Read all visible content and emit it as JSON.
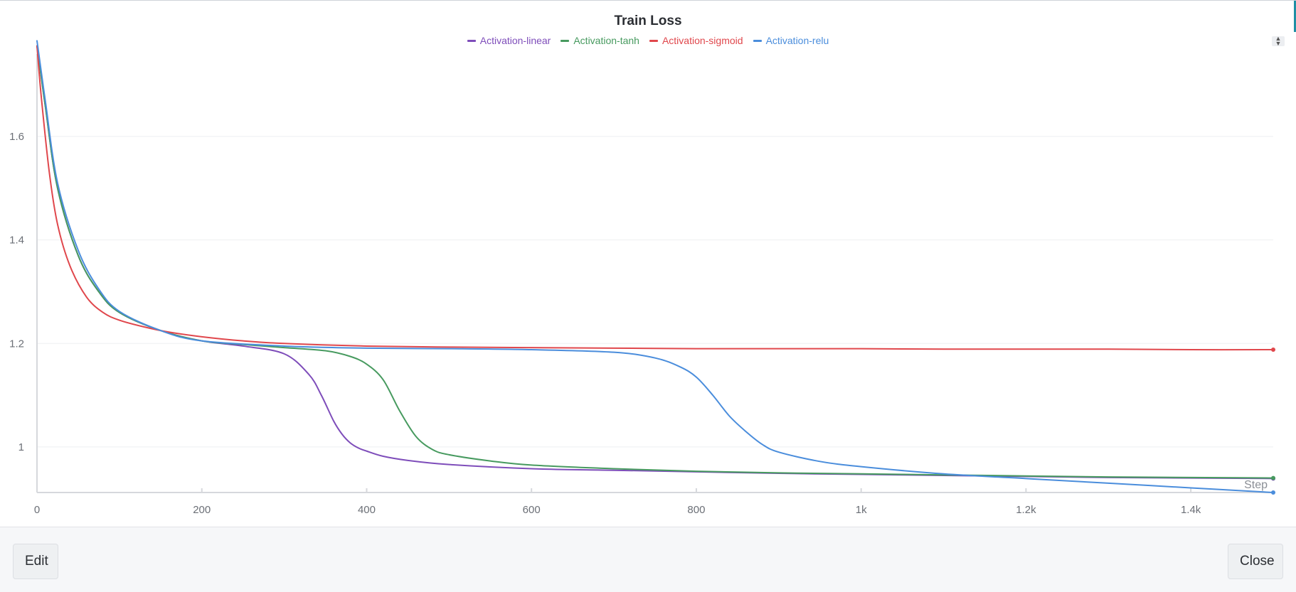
{
  "panel": {
    "edit_label": "Edit",
    "close_label": "Close"
  },
  "chart_data": {
    "type": "line",
    "title": "Train Loss",
    "xlabel": "Step",
    "ylabel": "",
    "xlim": [
      0,
      1500
    ],
    "ylim": [
      0.912,
      1.78
    ],
    "x_ticks": [
      0,
      200,
      400,
      600,
      800,
      1000,
      1200,
      1400
    ],
    "x_tick_labels": [
      "0",
      "200",
      "400",
      "600",
      "800",
      "1k",
      "1.2k",
      "1.4k"
    ],
    "y_ticks": [
      1.0,
      1.2,
      1.4,
      1.6
    ],
    "y_tick_labels": [
      "1",
      "1.2",
      "1.4",
      "1.6"
    ],
    "grid": true,
    "legend_position": "top-center",
    "series": [
      {
        "name": "Activation-linear",
        "color": "#7e4dba",
        "x": [
          0,
          10,
          25,
          50,
          75,
          100,
          150,
          200,
          250,
          300,
          330,
          345,
          360,
          370,
          380,
          390,
          400,
          420,
          450,
          500,
          600,
          700,
          800,
          900,
          1000,
          1100,
          1200,
          1300,
          1400,
          1500
        ],
        "y": [
          1.775,
          1.66,
          1.5,
          1.37,
          1.3,
          1.26,
          1.225,
          1.205,
          1.195,
          1.18,
          1.14,
          1.1,
          1.05,
          1.025,
          1.008,
          0.998,
          0.992,
          0.982,
          0.974,
          0.966,
          0.958,
          0.955,
          0.952,
          0.949,
          0.947,
          0.945,
          0.943,
          0.941,
          0.94,
          0.939
        ]
      },
      {
        "name": "Activation-tanh",
        "color": "#479a5f",
        "x": [
          0,
          10,
          25,
          50,
          75,
          100,
          150,
          200,
          250,
          300,
          350,
          380,
          400,
          420,
          440,
          460,
          480,
          500,
          550,
          600,
          700,
          800,
          900,
          1000,
          1100,
          1200,
          1300,
          1400,
          1500
        ],
        "y": [
          1.775,
          1.66,
          1.5,
          1.37,
          1.3,
          1.26,
          1.225,
          1.205,
          1.198,
          1.192,
          1.186,
          1.175,
          1.16,
          1.13,
          1.07,
          1.02,
          0.995,
          0.985,
          0.973,
          0.965,
          0.958,
          0.953,
          0.95,
          0.948,
          0.946,
          0.944,
          0.942,
          0.941,
          0.94
        ]
      },
      {
        "name": "Activation-sigmoid",
        "color": "#e0474c",
        "x": [
          0,
          5,
          15,
          25,
          40,
          60,
          80,
          100,
          130,
          160,
          200,
          250,
          300,
          400,
          500,
          600,
          700,
          800,
          900,
          1000,
          1100,
          1200,
          1300,
          1400,
          1500
        ],
        "y": [
          1.775,
          1.68,
          1.53,
          1.43,
          1.35,
          1.29,
          1.26,
          1.245,
          1.232,
          1.222,
          1.213,
          1.205,
          1.2,
          1.195,
          1.193,
          1.192,
          1.191,
          1.19,
          1.19,
          1.19,
          1.189,
          1.189,
          1.189,
          1.188,
          1.188
        ]
      },
      {
        "name": "Activation-relu",
        "color": "#4a8ddc",
        "x": [
          0,
          10,
          25,
          50,
          75,
          100,
          150,
          200,
          300,
          400,
          500,
          600,
          700,
          750,
          780,
          800,
          820,
          840,
          860,
          880,
          900,
          950,
          1000,
          1100,
          1200,
          1300,
          1400,
          1500
        ],
        "y": [
          1.785,
          1.67,
          1.51,
          1.38,
          1.305,
          1.262,
          1.225,
          1.205,
          1.195,
          1.191,
          1.19,
          1.188,
          1.183,
          1.172,
          1.155,
          1.135,
          1.1,
          1.06,
          1.03,
          1.005,
          0.99,
          0.972,
          0.962,
          0.948,
          0.939,
          0.93,
          0.921,
          0.912
        ]
      }
    ]
  }
}
